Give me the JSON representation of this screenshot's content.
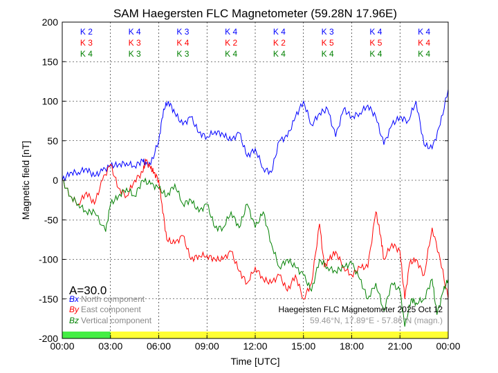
{
  "chart_data": {
    "type": "line",
    "title": "SAM Haegersten FLC Magnetometer (59.28N 17.96E)",
    "xlabel": "Time [UTC]",
    "ylabel": "Magnetic field [nT]",
    "xlim": [
      0,
      24
    ],
    "ylim": [
      -200,
      200
    ],
    "xticks": [
      0,
      3,
      6,
      9,
      12,
      15,
      18,
      21,
      24
    ],
    "xtick_labels": [
      "00:00",
      "03:00",
      "06:00",
      "09:00",
      "12:00",
      "15:00",
      "18:00",
      "21:00",
      "00:00"
    ],
    "yticks": [
      200,
      150,
      100,
      50,
      0,
      -50,
      -100,
      -150,
      -200
    ],
    "grid": true,
    "k_indices": {
      "x": [
        "K 2",
        "K 4",
        "K 3",
        "K 4",
        "K 4",
        "K 3",
        "K 4",
        "K 4"
      ],
      "y": [
        "K 3",
        "K 3",
        "K 4",
        "K 2",
        "K 2",
        "K 5",
        "K 5",
        "K 4"
      ],
      "z": [
        "K 4",
        "K 3",
        "K 3",
        "K 4",
        "K 4",
        "K 4",
        "K 4",
        "K 4"
      ]
    },
    "activity_label": "A=30.0",
    "activity_bar": [
      {
        "from": 0,
        "to": 3,
        "color": "#44ee44"
      },
      {
        "from": 3,
        "to": 24,
        "color": "#ffff33"
      }
    ],
    "legend_symbols": [
      "Bx",
      "By",
      "Bz"
    ],
    "legend": [
      "North component",
      "East component",
      "Vertical component"
    ],
    "annotation": "Haegersten FLC Magnetometer 2025 Oct 12",
    "annotation2": "59.46°N, 17.89°E - 57.86°N (magn.)",
    "series": [
      {
        "name": "Bx",
        "color": "#0000ff",
        "x": [
          0,
          0.5,
          1,
          1.5,
          2,
          2.5,
          3,
          3.5,
          4,
          4.5,
          5,
          5.2,
          5.5,
          6,
          6.3,
          6.6,
          7,
          7.5,
          8,
          8.5,
          9,
          9.5,
          10,
          10.5,
          11,
          11.5,
          12,
          12.5,
          13,
          13.5,
          14,
          14.5,
          15,
          15.5,
          16,
          16.5,
          17,
          17.5,
          18,
          18.5,
          19,
          19.5,
          20,
          20.5,
          21,
          21.5,
          22,
          22.5,
          23,
          23.5,
          24
        ],
        "y": [
          0,
          10,
          10,
          15,
          5,
          12,
          18,
          20,
          22,
          18,
          25,
          20,
          20,
          50,
          90,
          100,
          85,
          70,
          80,
          60,
          55,
          62,
          58,
          50,
          60,
          30,
          40,
          15,
          10,
          50,
          55,
          80,
          100,
          70,
          85,
          90,
          55,
          90,
          80,
          85,
          95,
          80,
          45,
          70,
          80,
          75,
          100,
          45,
          40,
          70,
          115
        ]
      },
      {
        "name": "By",
        "color": "#ff0000",
        "x": [
          0,
          0.5,
          1,
          1.5,
          2,
          2.5,
          3,
          3.5,
          4,
          4.5,
          5,
          5.2,
          5.5,
          5.7,
          6,
          6.2,
          6.5,
          7,
          7.5,
          8,
          8.5,
          9,
          9.5,
          10,
          10.5,
          11,
          11.5,
          12,
          12.5,
          13,
          13.5,
          14,
          14.5,
          15,
          15.5,
          16,
          16.3,
          16.6,
          17,
          17.5,
          18,
          18.5,
          19,
          19.5,
          19.8,
          20,
          20.5,
          21,
          21.3,
          21.6,
          22,
          22.5,
          23,
          23.5,
          24
        ],
        "y": [
          0,
          -20,
          -30,
          -15,
          -30,
          0,
          20,
          -10,
          -20,
          0,
          10,
          25,
          15,
          10,
          0,
          -30,
          -75,
          -80,
          -70,
          -100,
          -95,
          -95,
          -100,
          -100,
          -90,
          -115,
          -130,
          -110,
          -125,
          -130,
          -120,
          -140,
          -120,
          -150,
          -130,
          -55,
          -110,
          -100,
          -90,
          -110,
          -120,
          -110,
          -110,
          -40,
          -70,
          -100,
          -80,
          -90,
          -150,
          -105,
          -100,
          -120,
          -60,
          -100,
          -150
        ]
      },
      {
        "name": "Bz",
        "color": "#008000",
        "x": [
          0,
          0.5,
          1,
          1.5,
          2,
          2.7,
          3,
          3.5,
          4,
          4.5,
          5,
          5.5,
          6,
          6.5,
          7,
          7.5,
          8,
          8.5,
          9,
          9.5,
          10,
          10.5,
          11,
          11.5,
          12,
          12.5,
          13,
          13.5,
          14,
          14.5,
          15,
          15.5,
          16,
          16.5,
          17,
          17.5,
          18,
          18.5,
          19,
          19.5,
          20,
          20.5,
          21,
          21.3,
          21.7,
          22,
          22.5,
          23,
          23.3,
          23.7,
          24
        ],
        "y": [
          0,
          -20,
          -30,
          -40,
          -40,
          -65,
          -30,
          -20,
          -10,
          -20,
          0,
          -5,
          -10,
          -20,
          -5,
          -30,
          -25,
          -40,
          -30,
          -60,
          -60,
          -40,
          -60,
          -30,
          -60,
          -40,
          -80,
          -110,
          -100,
          -110,
          -120,
          -140,
          -100,
          -110,
          -115,
          -110,
          -105,
          -125,
          -150,
          -130,
          -165,
          -130,
          -140,
          -185,
          -150,
          -155,
          -150,
          -125,
          -170,
          -140,
          -125
        ]
      }
    ]
  }
}
